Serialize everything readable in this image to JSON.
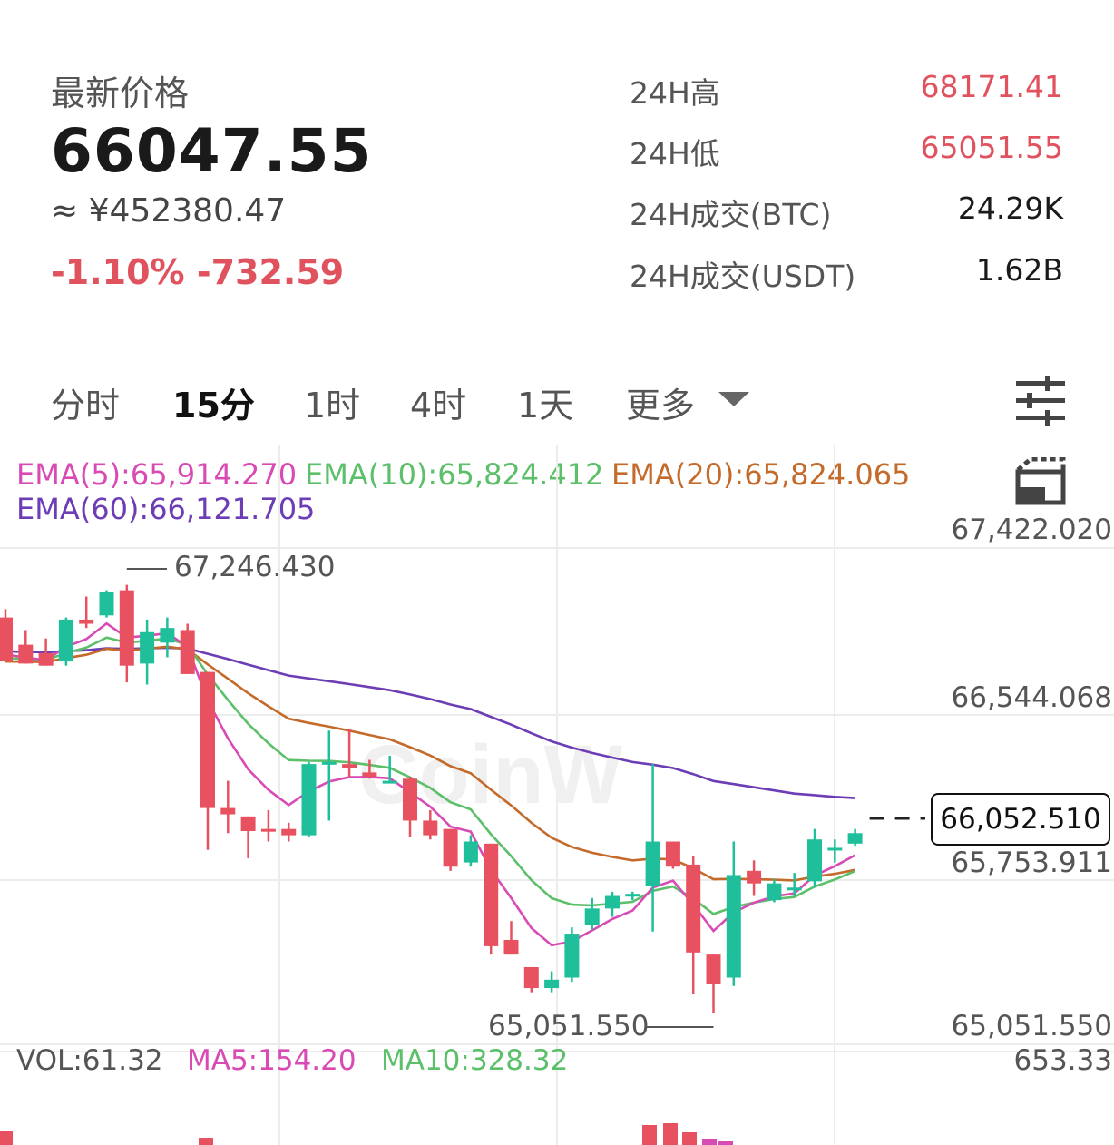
{
  "header": {
    "price_label": "最新价格",
    "last_price": "66047.55",
    "cny_price": "≈ ¥452380.47",
    "change": "-1.10% -732.59"
  },
  "stats": [
    {
      "label": "24H高",
      "value": "68171.41",
      "color": "#e0525e"
    },
    {
      "label": "24H低",
      "value": "65051.55",
      "color": "#e0525e"
    },
    {
      "label": "24H成交(BTC)",
      "value": "24.29K",
      "color": "#1a1a1a"
    },
    {
      "label": "24H成交(USDT)",
      "value": "1.62B",
      "color": "#1a1a1a"
    }
  ],
  "tabs": [
    {
      "label": "分时",
      "active": false
    },
    {
      "label": "15分",
      "active": true
    },
    {
      "label": "1时",
      "active": false
    },
    {
      "label": "4时",
      "active": false
    },
    {
      "label": "1天",
      "active": false
    },
    {
      "label": "更多",
      "active": false
    }
  ],
  "icons": {
    "settings": "sliders-icon",
    "fullscreen": "fullscreen-icon",
    "more": "chevron-down-icon"
  },
  "indicators": {
    "ema5": "EMA(5):65,914.270",
    "ema10": "EMA(10):65,824.412",
    "ema20": "EMA(20):65,824.065",
    "ema60": "EMA(60):66,121.705"
  },
  "volume": {
    "vol": "VOL:61.32",
    "ma5": "MA5:154.20",
    "ma10": "MA10:328.32",
    "axis_max": "653.33"
  },
  "watermark": "CoinW",
  "chart_data": {
    "type": "candlestick",
    "y_axis_labels": [
      "67,422.020",
      "66,544.068",
      "65,753.911",
      "65,051.550"
    ],
    "ylim": [
      65051.55,
      67422.02
    ],
    "last_price_tag": "66,052.510",
    "high_marker": "67,246.430",
    "low_marker": "65,051.550",
    "colors": {
      "up": "#1fbf9c",
      "down": "#e8515f",
      "ema5": "#d94bb4",
      "ema10": "#5cbf6a",
      "ema20": "#c46a2a",
      "ema60": "#6c3db5"
    },
    "candles": [
      {
        "o": 67090,
        "h": 67130,
        "l": 66880,
        "c": 66880
      },
      {
        "o": 66960,
        "h": 67030,
        "l": 66870,
        "c": 66870
      },
      {
        "o": 66920,
        "h": 66990,
        "l": 66860,
        "c": 66860
      },
      {
        "o": 66880,
        "h": 67090,
        "l": 66860,
        "c": 67080
      },
      {
        "o": 67080,
        "h": 67190,
        "l": 67040,
        "c": 67060
      },
      {
        "o": 67100,
        "h": 67220,
        "l": 67090,
        "c": 67210
      },
      {
        "o": 67220,
        "h": 67246,
        "l": 66780,
        "c": 66860
      },
      {
        "o": 66870,
        "h": 67080,
        "l": 66770,
        "c": 67020
      },
      {
        "o": 66970,
        "h": 67090,
        "l": 66900,
        "c": 67040
      },
      {
        "o": 67030,
        "h": 67060,
        "l": 66820,
        "c": 66820
      },
      {
        "o": 66830,
        "h": 66830,
        "l": 65980,
        "c": 66180
      },
      {
        "o": 66180,
        "h": 66310,
        "l": 66060,
        "c": 66150
      },
      {
        "o": 66140,
        "h": 66140,
        "l": 65940,
        "c": 66070
      },
      {
        "o": 66080,
        "h": 66170,
        "l": 66020,
        "c": 66070
      },
      {
        "o": 66080,
        "h": 66110,
        "l": 66020,
        "c": 66050
      },
      {
        "o": 66050,
        "h": 66400,
        "l": 66040,
        "c": 66390
      },
      {
        "o": 66400,
        "h": 66550,
        "l": 66120,
        "c": 66400
      },
      {
        "o": 66390,
        "h": 66560,
        "l": 66330,
        "c": 66370
      },
      {
        "o": 66350,
        "h": 66410,
        "l": 66320,
        "c": 66330
      },
      {
        "o": 66310,
        "h": 66430,
        "l": 66300,
        "c": 66310
      },
      {
        "o": 66320,
        "h": 66330,
        "l": 66040,
        "c": 66120
      },
      {
        "o": 66120,
        "h": 66170,
        "l": 66030,
        "c": 66050
      },
      {
        "o": 66080,
        "h": 66080,
        "l": 65880,
        "c": 65900
      },
      {
        "o": 65920,
        "h": 66050,
        "l": 65900,
        "c": 66020
      },
      {
        "o": 66010,
        "h": 66010,
        "l": 65480,
        "c": 65520
      },
      {
        "o": 65550,
        "h": 65640,
        "l": 65480,
        "c": 65480
      },
      {
        "o": 65420,
        "h": 65420,
        "l": 65300,
        "c": 65320
      },
      {
        "o": 65320,
        "h": 65400,
        "l": 65300,
        "c": 65360
      },
      {
        "o": 65370,
        "h": 65610,
        "l": 65350,
        "c": 65580
      },
      {
        "o": 65620,
        "h": 65750,
        "l": 65600,
        "c": 65700
      },
      {
        "o": 65700,
        "h": 65780,
        "l": 65660,
        "c": 65760
      },
      {
        "o": 65760,
        "h": 65780,
        "l": 65740,
        "c": 65770
      },
      {
        "o": 65810,
        "h": 66390,
        "l": 65590,
        "c": 66020
      },
      {
        "o": 66020,
        "h": 66020,
        "l": 65890,
        "c": 65900
      },
      {
        "o": 65910,
        "h": 65950,
        "l": 65290,
        "c": 65490
      },
      {
        "o": 65480,
        "h": 65480,
        "l": 65200,
        "c": 65340
      },
      {
        "o": 65370,
        "h": 66020,
        "l": 65330,
        "c": 65860
      },
      {
        "o": 65880,
        "h": 65930,
        "l": 65760,
        "c": 65820
      },
      {
        "o": 65740,
        "h": 65840,
        "l": 65730,
        "c": 65820
      },
      {
        "o": 65800,
        "h": 65870,
        "l": 65760,
        "c": 65800
      },
      {
        "o": 65830,
        "h": 66080,
        "l": 65800,
        "c": 66030
      },
      {
        "o": 65990,
        "h": 66030,
        "l": 65920,
        "c": 65990
      },
      {
        "o": 66010,
        "h": 66080,
        "l": 66000,
        "c": 66060
      }
    ]
  }
}
